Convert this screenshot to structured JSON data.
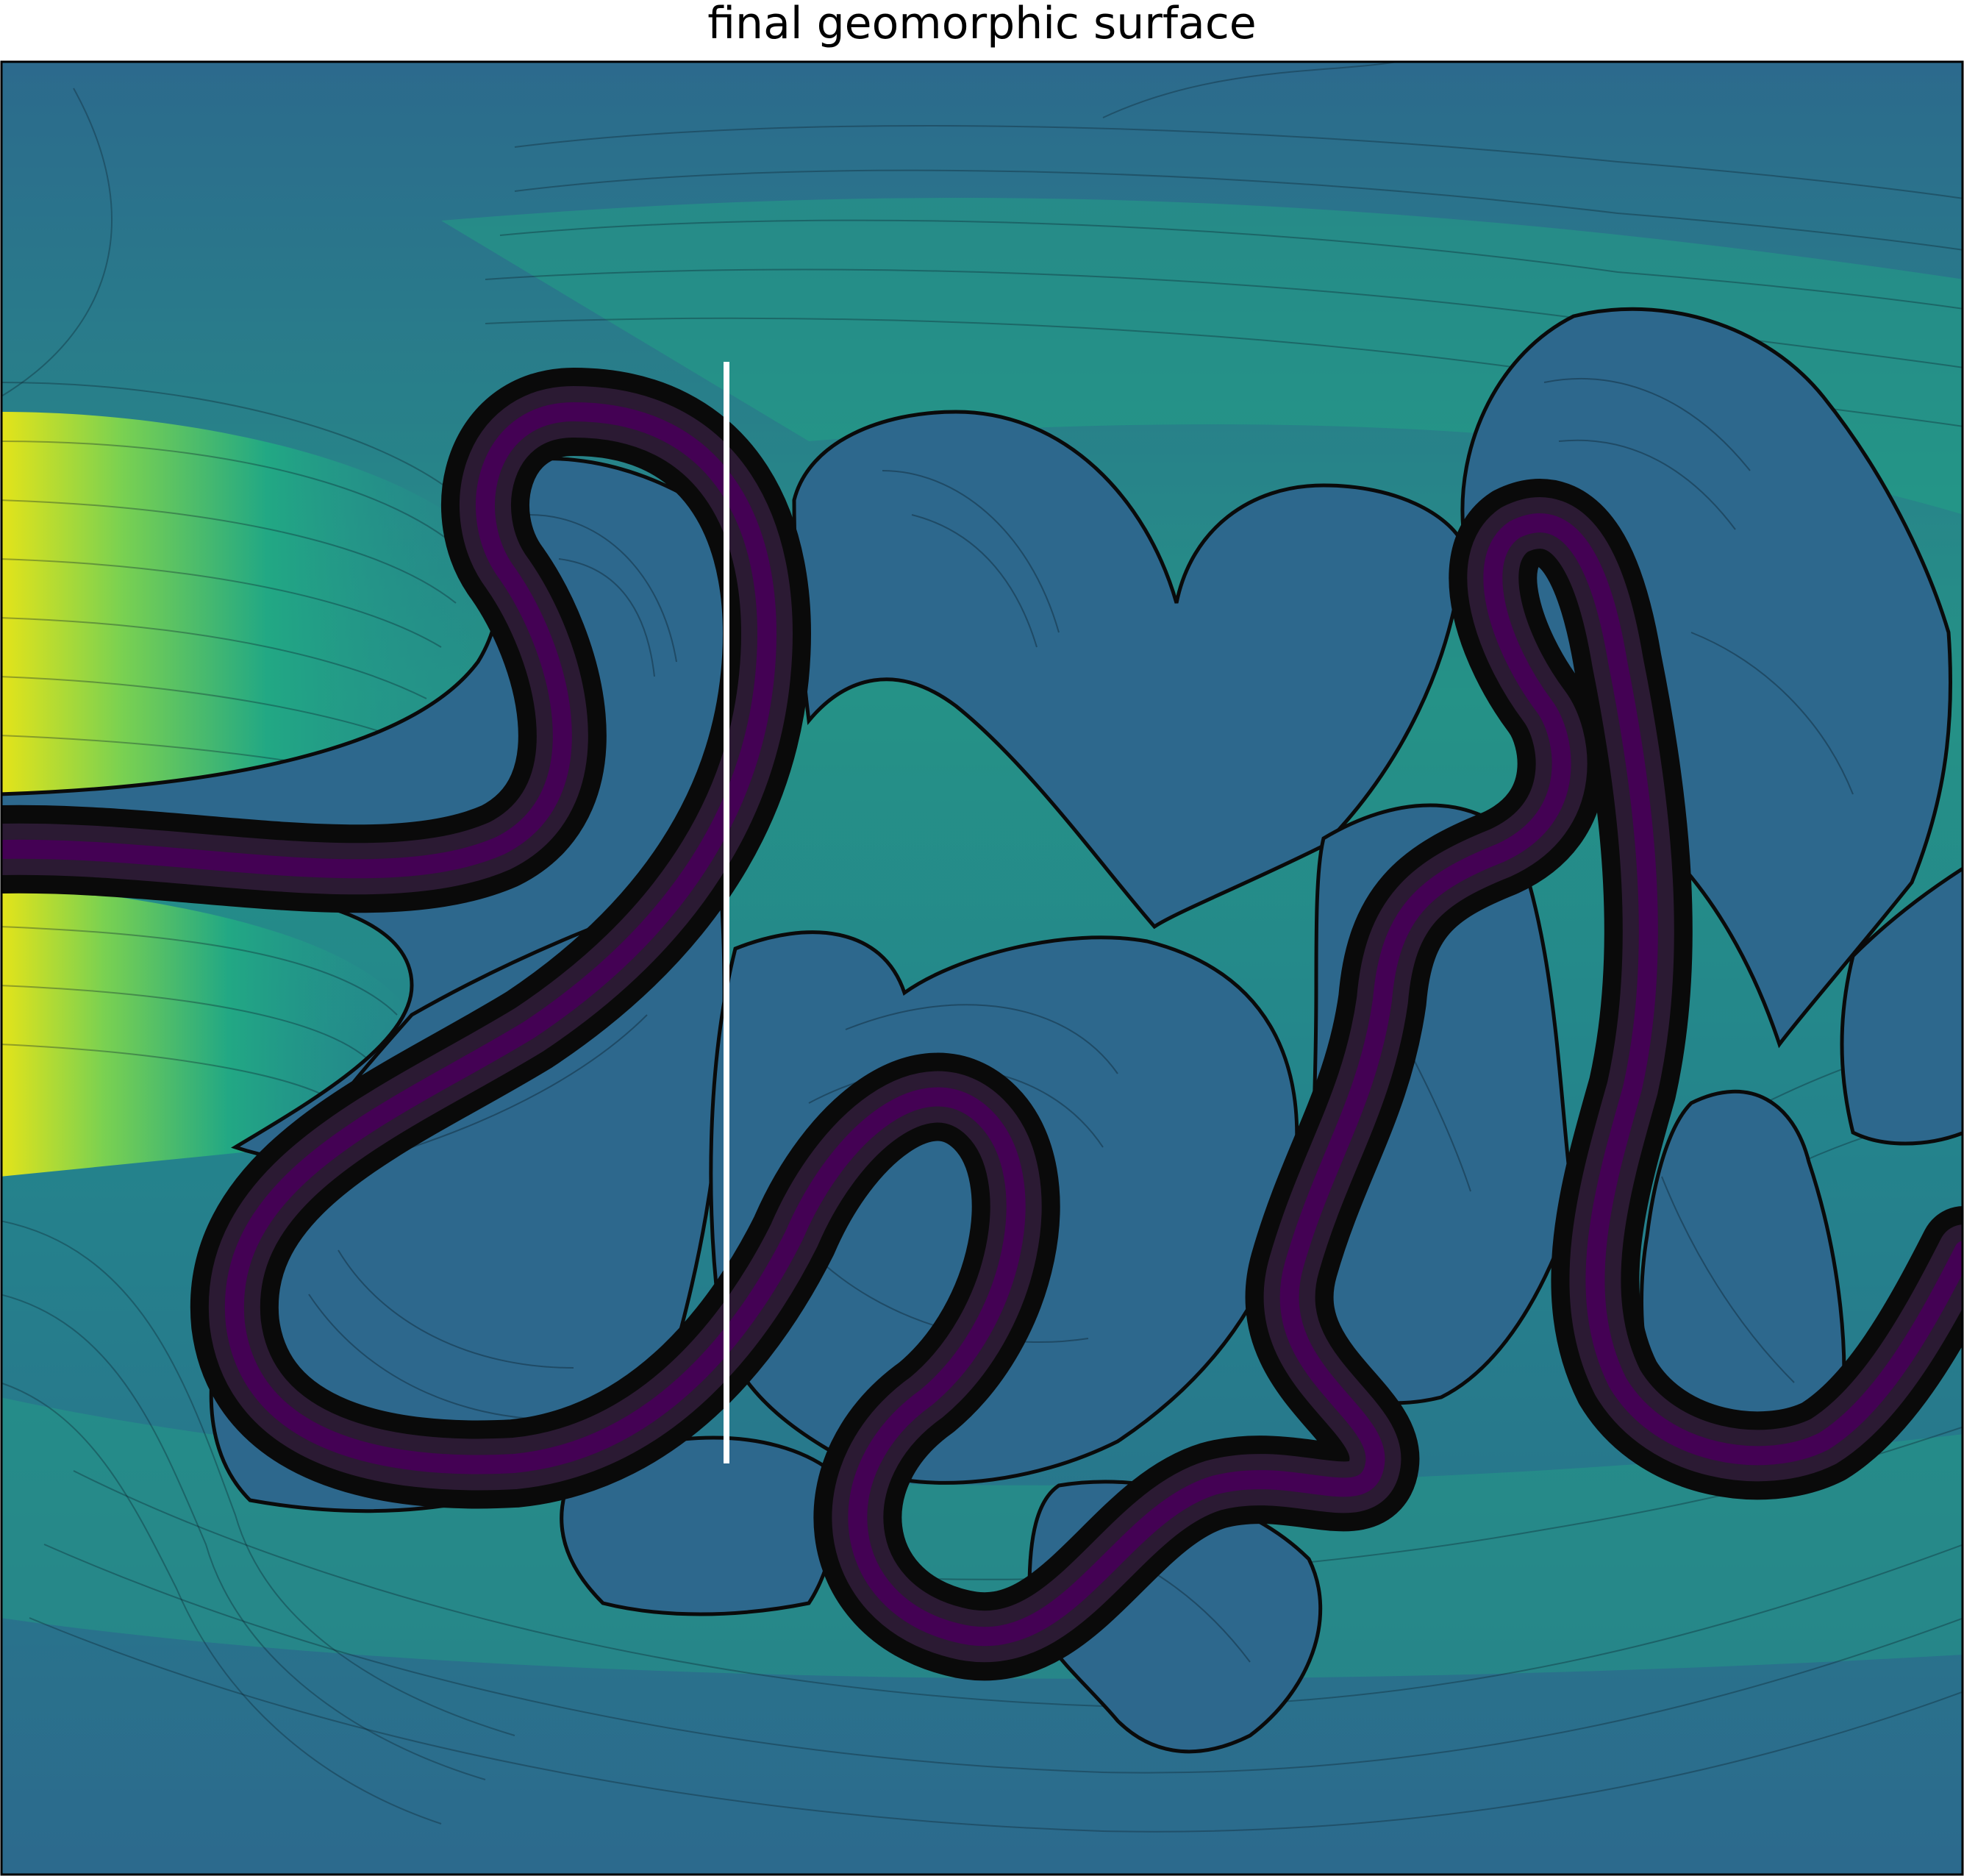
{
  "figure": {
    "title": "final geomorphic surface"
  },
  "colors": {
    "floodplain": "#2d688d",
    "low": "#2a6d8f",
    "mid": "#21918c",
    "high": "#7ad151",
    "highest": "#e5e419",
    "channel_core": "#440154",
    "channel_edge": "#0a0a0a",
    "cross_section": "#ffffff",
    "contour": "#0b1f2a"
  },
  "map": {
    "colormap": "viridis",
    "contour_lines": true,
    "features": [
      "channel",
      "floodplain",
      "scroll bars",
      "cross-section line"
    ]
  }
}
